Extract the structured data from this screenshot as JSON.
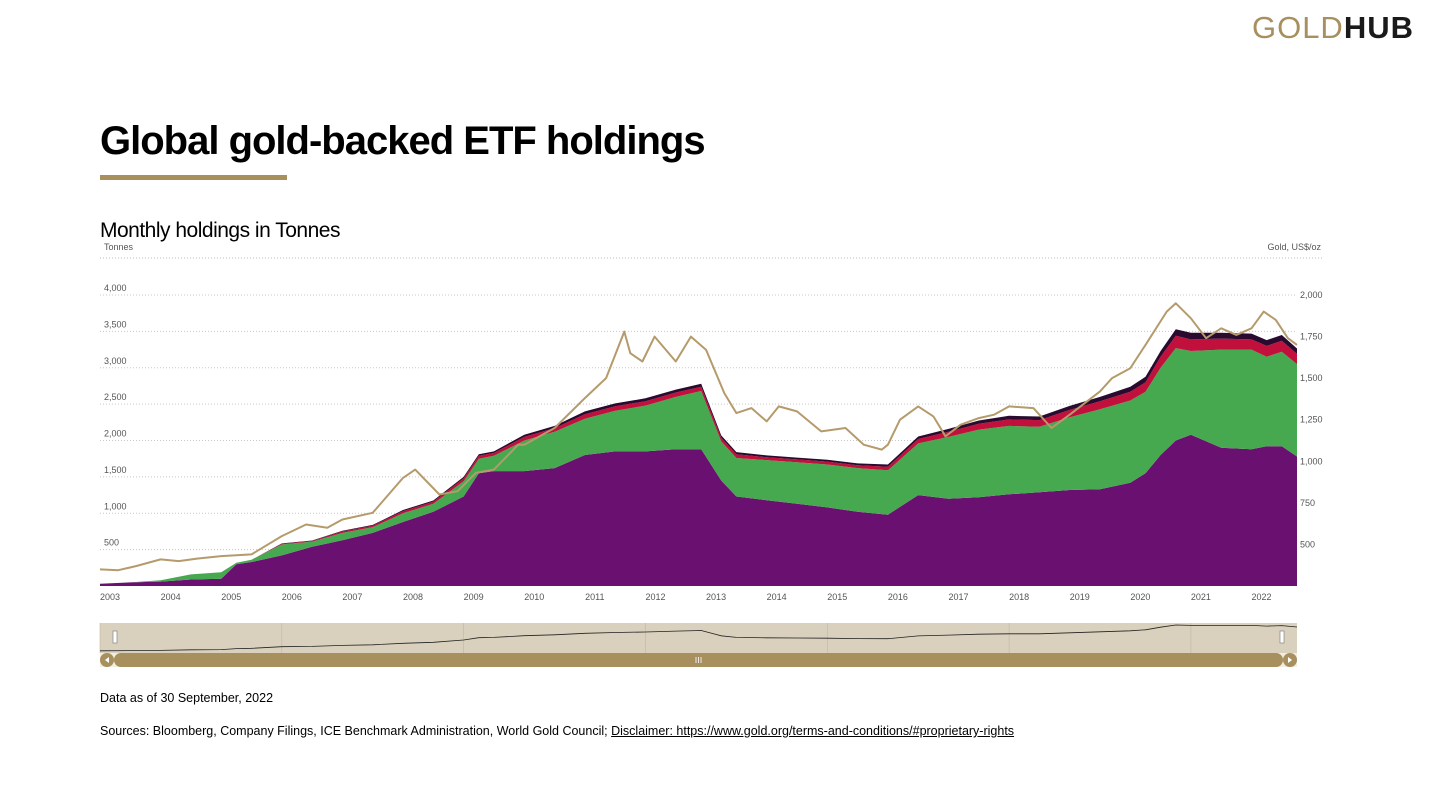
{
  "brand": {
    "gold": "GOLD",
    "hub": "HUB",
    "gold_color": "#a8905e"
  },
  "page": {
    "title": "Global gold-backed ETF holdings",
    "subtitle": "Monthly holdings in Tonnes"
  },
  "footer": {
    "data_as_of": "Data as of 30 September, 2022",
    "sources": "Sources: Bloomberg, Company Filings, ICE Benchmark Administration, World Gold Council;",
    "disclaimer": "Disclaimer: https://www.gold.org/terms-and-conditions/#proprietary-rights"
  },
  "chart_data": {
    "type": "area",
    "stacked": true,
    "ylabel": "Tonnes",
    "y2label": "Gold, US$/oz",
    "ylim": [
      0,
      4000
    ],
    "y2lim": [
      250,
      2000
    ],
    "y_ticks": [
      "500",
      "1,000",
      "1,500",
      "2,000",
      "2,500",
      "3,000",
      "3,500",
      "4,000"
    ],
    "y2_ticks": [
      "500",
      "750",
      "1,000",
      "1,250",
      "1,500",
      "1,750",
      "2,000"
    ],
    "x_ticks": [
      "2003",
      "2004",
      "2005",
      "2006",
      "2007",
      "2008",
      "2009",
      "2010",
      "2011",
      "2012",
      "2013",
      "2014",
      "2015",
      "2016",
      "2017",
      "2018",
      "2019",
      "2020",
      "2021",
      "2022"
    ],
    "grid": true,
    "x": [
      2003.0,
      2003.5,
      2004.0,
      2004.5,
      2005.0,
      2005.25,
      2005.5,
      2006.0,
      2006.5,
      2007.0,
      2007.5,
      2008.0,
      2008.5,
      2009.0,
      2009.25,
      2009.5,
      2010.0,
      2010.5,
      2011.0,
      2011.5,
      2012.0,
      2012.5,
      2012.92,
      2013.25,
      2013.5,
      2014.0,
      2014.5,
      2015.0,
      2015.5,
      2016.0,
      2016.5,
      2017.0,
      2017.5,
      2018.0,
      2018.5,
      2019.0,
      2019.5,
      2020.0,
      2020.25,
      2020.5,
      2020.75,
      2021.0,
      2021.5,
      2022.0,
      2022.25,
      2022.5,
      2022.75
    ],
    "series": [
      {
        "color": "#6a1070",
        "values": [
          30,
          50,
          60,
          90,
          100,
          300,
          330,
          420,
          540,
          630,
          730,
          880,
          1020,
          1230,
          1550,
          1580,
          1580,
          1620,
          1800,
          1850,
          1850,
          1880,
          1880,
          1450,
          1230,
          1180,
          1130,
          1080,
          1020,
          980,
          1250,
          1200,
          1220,
          1260,
          1290,
          1320,
          1330,
          1420,
          1550,
          1800,
          2000,
          2080,
          1900,
          1880,
          1920,
          1920,
          1780
        ]
      },
      {
        "color": "#46a84f",
        "values": [
          0,
          0,
          20,
          70,
          90,
          20,
          30,
          150,
          70,
          100,
          80,
          120,
          110,
          210,
          200,
          210,
          420,
          500,
          500,
          560,
          630,
          720,
          800,
          540,
          530,
          550,
          570,
          590,
          600,
          610,
          710,
          850,
          930,
          940,
          900,
          1000,
          1100,
          1130,
          1120,
          1200,
          1270,
          1150,
          1350,
          1370,
          1230,
          1300,
          1270
        ]
      },
      {
        "color": "#c0103b",
        "values": [
          0,
          0,
          0,
          0,
          0,
          0,
          0,
          10,
          10,
          20,
          20,
          30,
          30,
          40,
          40,
          40,
          50,
          50,
          60,
          60,
          60,
          60,
          60,
          50,
          50,
          40,
          40,
          40,
          40,
          50,
          60,
          70,
          80,
          90,
          90,
          100,
          110,
          120,
          130,
          150,
          170,
          160,
          150,
          140,
          150,
          150,
          140
        ]
      },
      {
        "color": "#2a0a2e",
        "values": [
          0,
          0,
          0,
          0,
          0,
          0,
          0,
          5,
          5,
          10,
          10,
          15,
          15,
          20,
          20,
          20,
          30,
          30,
          40,
          40,
          40,
          40,
          40,
          30,
          30,
          25,
          25,
          25,
          25,
          30,
          35,
          40,
          45,
          50,
          50,
          55,
          60,
          70,
          75,
          80,
          90,
          90,
          80,
          80,
          80,
          80,
          75
        ]
      }
    ],
    "price": {
      "name": "Gold, US$/oz",
      "color": "#b59b6b",
      "x": [
        2003.0,
        2003.3,
        2003.6,
        2004.0,
        2004.3,
        2004.6,
        2005.0,
        2005.5,
        2006.0,
        2006.4,
        2006.75,
        2007.0,
        2007.5,
        2008.0,
        2008.2,
        2008.6,
        2008.9,
        2009.2,
        2009.5,
        2009.9,
        2010.0,
        2010.5,
        2011.0,
        2011.35,
        2011.65,
        2011.75,
        2011.95,
        2012.15,
        2012.5,
        2012.75,
        2013.0,
        2013.3,
        2013.5,
        2013.75,
        2014.0,
        2014.2,
        2014.5,
        2014.9,
        2015.3,
        2015.6,
        2015.9,
        2016.0,
        2016.2,
        2016.5,
        2016.75,
        2016.95,
        2017.2,
        2017.5,
        2017.75,
        2018.0,
        2018.4,
        2018.7,
        2019.0,
        2019.5,
        2019.7,
        2020.0,
        2020.25,
        2020.6,
        2020.75,
        2021.0,
        2021.25,
        2021.5,
        2021.75,
        2022.0,
        2022.2,
        2022.4,
        2022.6,
        2022.75
      ],
      "values": [
        350,
        345,
        370,
        410,
        400,
        415,
        430,
        440,
        550,
        620,
        600,
        650,
        690,
        900,
        950,
        800,
        820,
        930,
        950,
        1100,
        1100,
        1200,
        1380,
        1500,
        1780,
        1650,
        1600,
        1750,
        1600,
        1750,
        1670,
        1410,
        1290,
        1320,
        1240,
        1330,
        1300,
        1180,
        1200,
        1100,
        1070,
        1100,
        1250,
        1330,
        1270,
        1150,
        1220,
        1260,
        1280,
        1330,
        1320,
        1200,
        1280,
        1420,
        1500,
        1560,
        1700,
        1900,
        1950,
        1860,
        1740,
        1800,
        1760,
        1800,
        1900,
        1850,
        1740,
        1700
      ]
    }
  }
}
